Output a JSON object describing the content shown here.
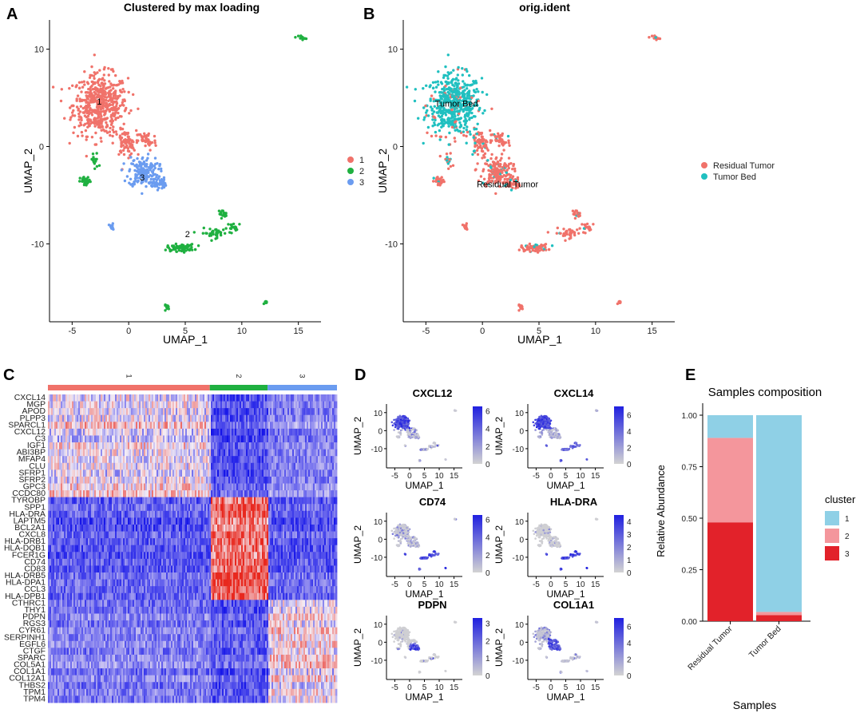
{
  "panel_letters": {
    "a": "A",
    "b": "B",
    "c": "C",
    "d": "D",
    "e": "E"
  },
  "colors": {
    "cluster1_red": "#f0726a",
    "cluster2_green": "#1fb040",
    "cluster3_blue": "#6b9cf0",
    "residual": "#f0726a",
    "tumor_bed": "#20c0c0",
    "heat_low": "#1010e8",
    "heat_mid": "#f4ecf4",
    "heat_high": "#e8281e",
    "feat_low": "#d3d3d3",
    "feat_high": "#2020e0",
    "stack1": "#8fd0e6",
    "stack2": "#f4969c",
    "stack3": "#e2222a"
  },
  "chart_data": [
    {
      "type": "scatter",
      "panel": "A",
      "title": "Clustered by max loading",
      "xlabel": "UMAP_1",
      "ylabel": "UMAP_2",
      "xlim": [
        -7,
        17
      ],
      "ylim": [
        -18,
        13
      ],
      "xticks": [
        -5,
        0,
        5,
        10,
        15
      ],
      "yticks": [
        -10,
        0,
        10
      ],
      "legend": {
        "position": "right",
        "entries": [
          "1",
          "2",
          "3"
        ]
      },
      "labels": [
        {
          "text": "1",
          "x": -2.6,
          "y": 4.3
        },
        {
          "text": "3",
          "x": 1.2,
          "y": -3.5
        },
        {
          "text": "2",
          "x": 5.2,
          "y": -9.3
        }
      ],
      "clusters": [
        {
          "center": [
            -2.5,
            4.3
          ],
          "spread": [
            2.0,
            2.6
          ],
          "n": 520,
          "group": 1
        },
        {
          "center": [
            -0.3,
            0.3
          ],
          "spread": [
            0.8,
            1.1
          ],
          "n": 70,
          "group": 1
        },
        {
          "center": [
            1.6,
            0.6
          ],
          "spread": [
            0.7,
            0.9
          ],
          "n": 40,
          "group": 1
        },
        {
          "center": [
            1.3,
            -2.6
          ],
          "spread": [
            1.1,
            1.3
          ],
          "n": 170,
          "group": 3
        },
        {
          "center": [
            2.7,
            -3.8
          ],
          "spread": [
            0.5,
            0.5
          ],
          "n": 40,
          "group": 3
        },
        {
          "center": [
            -1.5,
            -8.3
          ],
          "spread": [
            0.2,
            0.3
          ],
          "n": 15,
          "group": 3
        },
        {
          "center": [
            -3.8,
            -3.6
          ],
          "spread": [
            0.4,
            0.4
          ],
          "n": 30,
          "group": 2
        },
        {
          "center": [
            -3.0,
            -1.5
          ],
          "spread": [
            0.3,
            0.8
          ],
          "n": 15,
          "group": 2
        },
        {
          "center": [
            4.6,
            -10.4
          ],
          "spread": [
            1.0,
            0.3
          ],
          "n": 80,
          "group": 2
        },
        {
          "center": [
            7.6,
            -8.9
          ],
          "spread": [
            1.0,
            0.4
          ],
          "n": 35,
          "group": 2
        },
        {
          "center": [
            8.3,
            -6.9
          ],
          "spread": [
            0.3,
            0.3
          ],
          "n": 18,
          "group": 2
        },
        {
          "center": [
            9.3,
            -8.4
          ],
          "spread": [
            0.7,
            0.5
          ],
          "n": 20,
          "group": 2
        },
        {
          "center": [
            3.4,
            -16.5
          ],
          "spread": [
            0.2,
            0.2
          ],
          "n": 14,
          "group": 2
        },
        {
          "center": [
            12.2,
            -16.0
          ],
          "spread": [
            0.15,
            0.15
          ],
          "n": 8,
          "group": 2
        },
        {
          "center": [
            15.3,
            11.2
          ],
          "spread": [
            0.25,
            0.2
          ],
          "n": 14,
          "group": 2
        }
      ]
    },
    {
      "type": "scatter",
      "panel": "B",
      "title": "orig.ident",
      "xlabel": "UMAP_1",
      "ylabel": "UMAP_2",
      "xlim": [
        -7,
        17
      ],
      "ylim": [
        -18,
        13
      ],
      "xticks": [
        -5,
        0,
        5,
        10,
        15
      ],
      "yticks": [
        -10,
        0,
        10
      ],
      "legend": {
        "position": "right",
        "entries": [
          "Residual Tumor",
          "Tumor Bed"
        ]
      },
      "labels": [
        {
          "text": "Tumor Bed",
          "x": -4.2,
          "y": 4.1
        },
        {
          "text": "Residual Tumor",
          "x": -0.5,
          "y": -4.2
        }
      ]
    },
    {
      "type": "heatmap",
      "panel": "C",
      "column_groups": [
        {
          "label": "1",
          "fraction": 0.56
        },
        {
          "label": "2",
          "fraction": 0.2
        },
        {
          "label": "3",
          "fraction": 0.24
        }
      ],
      "genes": [
        "CXCL14",
        "MGP",
        "APOD",
        "PLPP3",
        "SPARCL1",
        "CXCL12",
        "C3",
        "IGF1",
        "ABI3BP",
        "MFAP4",
        "CLU",
        "SFRP1",
        "SFRP2",
        "GPC3",
        "CCDC80",
        "TYROBP",
        "SPP1",
        "HLA-DRA",
        "LAPTM5",
        "BCL2A1",
        "CXCL8",
        "HLA-DRB1",
        "HLA-DQB1",
        "FCER1G",
        "CD74",
        "CD83",
        "HLA-DRB5",
        "HLA-DPA1",
        "CCL3",
        "HLA-DPB1",
        "CTHRC1",
        "THY1",
        "PDPN",
        "RGS3",
        "CYR61",
        "SERPINH1",
        "EGFL6",
        "CTGF",
        "SPARC",
        "COL5A1",
        "COL1A1",
        "COL12A1",
        "THBS2",
        "TPM1",
        "TPM4"
      ],
      "gene_groups": [
        15,
        15,
        15
      ]
    },
    {
      "type": "scatter",
      "panel": "D",
      "subplots": [
        {
          "gene": "CXCL12",
          "scale_ticks": [
            "6",
            "4",
            "2",
            "0"
          ],
          "max": 6.5
        },
        {
          "gene": "CXCL14",
          "scale_ticks": [
            "6",
            "4",
            "2",
            "0"
          ],
          "max": 7
        },
        {
          "gene": "CD74",
          "scale_ticks": [
            "6",
            "4",
            "2",
            "0"
          ],
          "max": 6.5
        },
        {
          "gene": "HLA-DRA",
          "scale_ticks": [
            "4",
            "3",
            "2",
            "1",
            "0"
          ],
          "max": 4.5
        },
        {
          "gene": "PDPN",
          "scale_ticks": [
            "3",
            "2",
            "1",
            "0"
          ],
          "max": 3.3
        },
        {
          "gene": "COL1A1",
          "scale_ticks": [
            "6",
            "4",
            "2",
            "0"
          ],
          "max": 7
        }
      ],
      "xlabel": "UMAP_1",
      "ylabel": "UMAP_2",
      "xticks": [
        "-5",
        "0",
        "5",
        "10",
        "15"
      ],
      "yticks": [
        "10",
        "0",
        "-10"
      ]
    },
    {
      "type": "bar",
      "panel": "E",
      "title": "Samples composition",
      "xlabel": "Samples",
      "ylabel": "Relative Abundance",
      "categories": [
        "Residual Tumor",
        "Tumor Bed"
      ],
      "series": [
        {
          "name": "3",
          "values": [
            0.48,
            0.03
          ]
        },
        {
          "name": "2",
          "values": [
            0.41,
            0.015
          ]
        },
        {
          "name": "1",
          "values": [
            0.11,
            0.955
          ]
        }
      ],
      "ylim": [
        0,
        1
      ],
      "yticks": [
        "0.00",
        "0.25",
        "0.50",
        "0.75",
        "1.00"
      ],
      "legend": {
        "title": "cluster",
        "entries": [
          "1",
          "2",
          "3"
        ],
        "position": "right"
      }
    }
  ]
}
